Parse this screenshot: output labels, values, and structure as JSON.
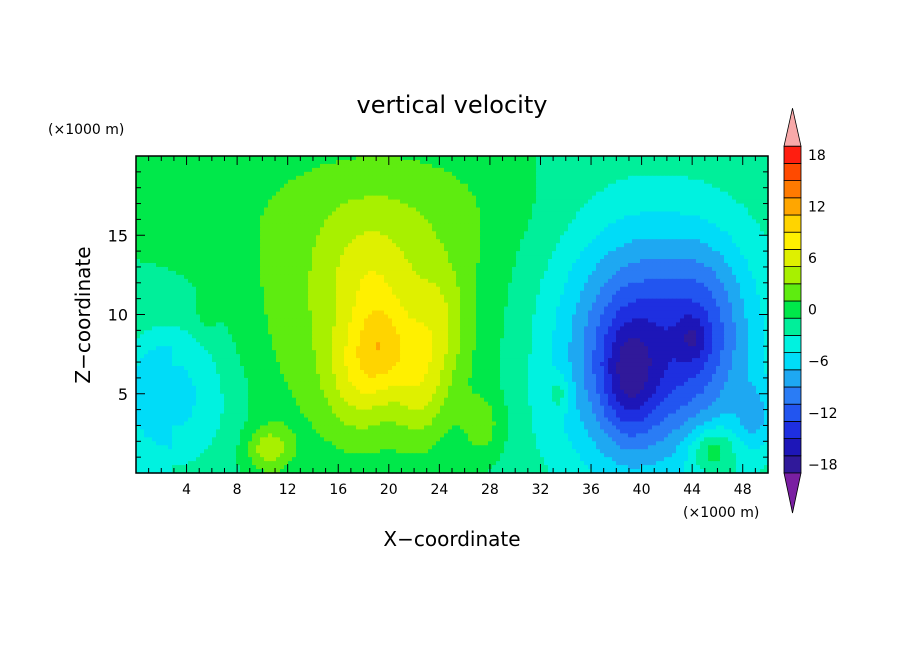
{
  "chart_data": {
    "type": "heatmap",
    "title": "vertical velocity",
    "xlabel": "X−coordinate",
    "ylabel": "Z−coordinate",
    "x_unit": "(×1000 m)",
    "y_unit": "(×1000 m)",
    "x_range": [
      0,
      50
    ],
    "y_range": [
      0,
      20
    ],
    "x_ticks": [
      4,
      8,
      12,
      16,
      20,
      24,
      28,
      32,
      36,
      40,
      44,
      48
    ],
    "y_ticks": [
      5,
      10,
      15
    ],
    "colorbar": {
      "labels": [
        "18",
        "12",
        "6",
        "0",
        "−6",
        "−12",
        "−18"
      ],
      "label_values": [
        18,
        12,
        6,
        0,
        -6,
        -12,
        -18
      ],
      "range": [
        -21,
        21
      ],
      "colors": [
        "#7a1fa2",
        "#30199a",
        "#1d16b8",
        "#1e2fe0",
        "#2255f0",
        "#2a7cf5",
        "#1ea8f2",
        "#00dcf8",
        "#00f2e0",
        "#00ef9a",
        "#00e84a",
        "#5eec10",
        "#a8f000",
        "#dff000",
        "#fff000",
        "#ffd400",
        "#ffa600",
        "#ff7a00",
        "#ff4a00",
        "#ff1e10",
        "#f8a9a9"
      ]
    },
    "features": [
      {
        "x": 20,
        "y": 9.5,
        "value": 5,
        "sx": 7.5,
        "sy": 5.5
      },
      {
        "x": 17.5,
        "y": 6,
        "value": 4,
        "sx": 1.8,
        "sy": 2.5
      },
      {
        "x": 19.5,
        "y": 8,
        "value": 5,
        "sx": 1.5,
        "sy": 2.0
      },
      {
        "x": 22.5,
        "y": 5.5,
        "value": 4,
        "sx": 1.5,
        "sy": 2.5
      },
      {
        "x": 24,
        "y": 9.5,
        "value": 3,
        "sx": 1.5,
        "sy": 2.5
      },
      {
        "x": 18.5,
        "y": 12.5,
        "value": 3,
        "sx": 2.5,
        "sy": 2.5
      },
      {
        "x": 20,
        "y": 17,
        "value": 2,
        "sx": 9,
        "sy": 3
      },
      {
        "x": 27.5,
        "y": 3,
        "value": 3,
        "sx": 1.2,
        "sy": 1.5
      },
      {
        "x": 10.5,
        "y": 1.5,
        "value": 5,
        "sx": 1.2,
        "sy": 1.0
      },
      {
        "x": 45.5,
        "y": 1.5,
        "value": 5,
        "sx": 1.2,
        "sy": 1.0
      },
      {
        "x": 39.5,
        "y": 7.5,
        "value": -8,
        "sx": 3.5,
        "sy": 5
      },
      {
        "x": 39,
        "y": 6,
        "value": -5,
        "sx": 1.5,
        "sy": 2.5
      },
      {
        "x": 45,
        "y": 9,
        "value": -6,
        "sx": 2.5,
        "sy": 4
      },
      {
        "x": 44,
        "y": 8.5,
        "value": -3,
        "sx": 0.8,
        "sy": 1.0
      },
      {
        "x": 40,
        "y": 8,
        "value": -5,
        "sx": 9,
        "sy": 7
      },
      {
        "x": 3,
        "y": 5,
        "value": -5,
        "sx": 3.5,
        "sy": 3.5
      },
      {
        "x": 5.5,
        "y": 10,
        "value": 1.5,
        "sx": 0.6,
        "sy": 0.8
      },
      {
        "x": 49,
        "y": 3.5,
        "value": -4,
        "sx": 1.0,
        "sy": 1.5
      },
      {
        "x": 33.5,
        "y": 5,
        "value": 3,
        "sx": 0.6,
        "sy": 0.8
      }
    ]
  }
}
